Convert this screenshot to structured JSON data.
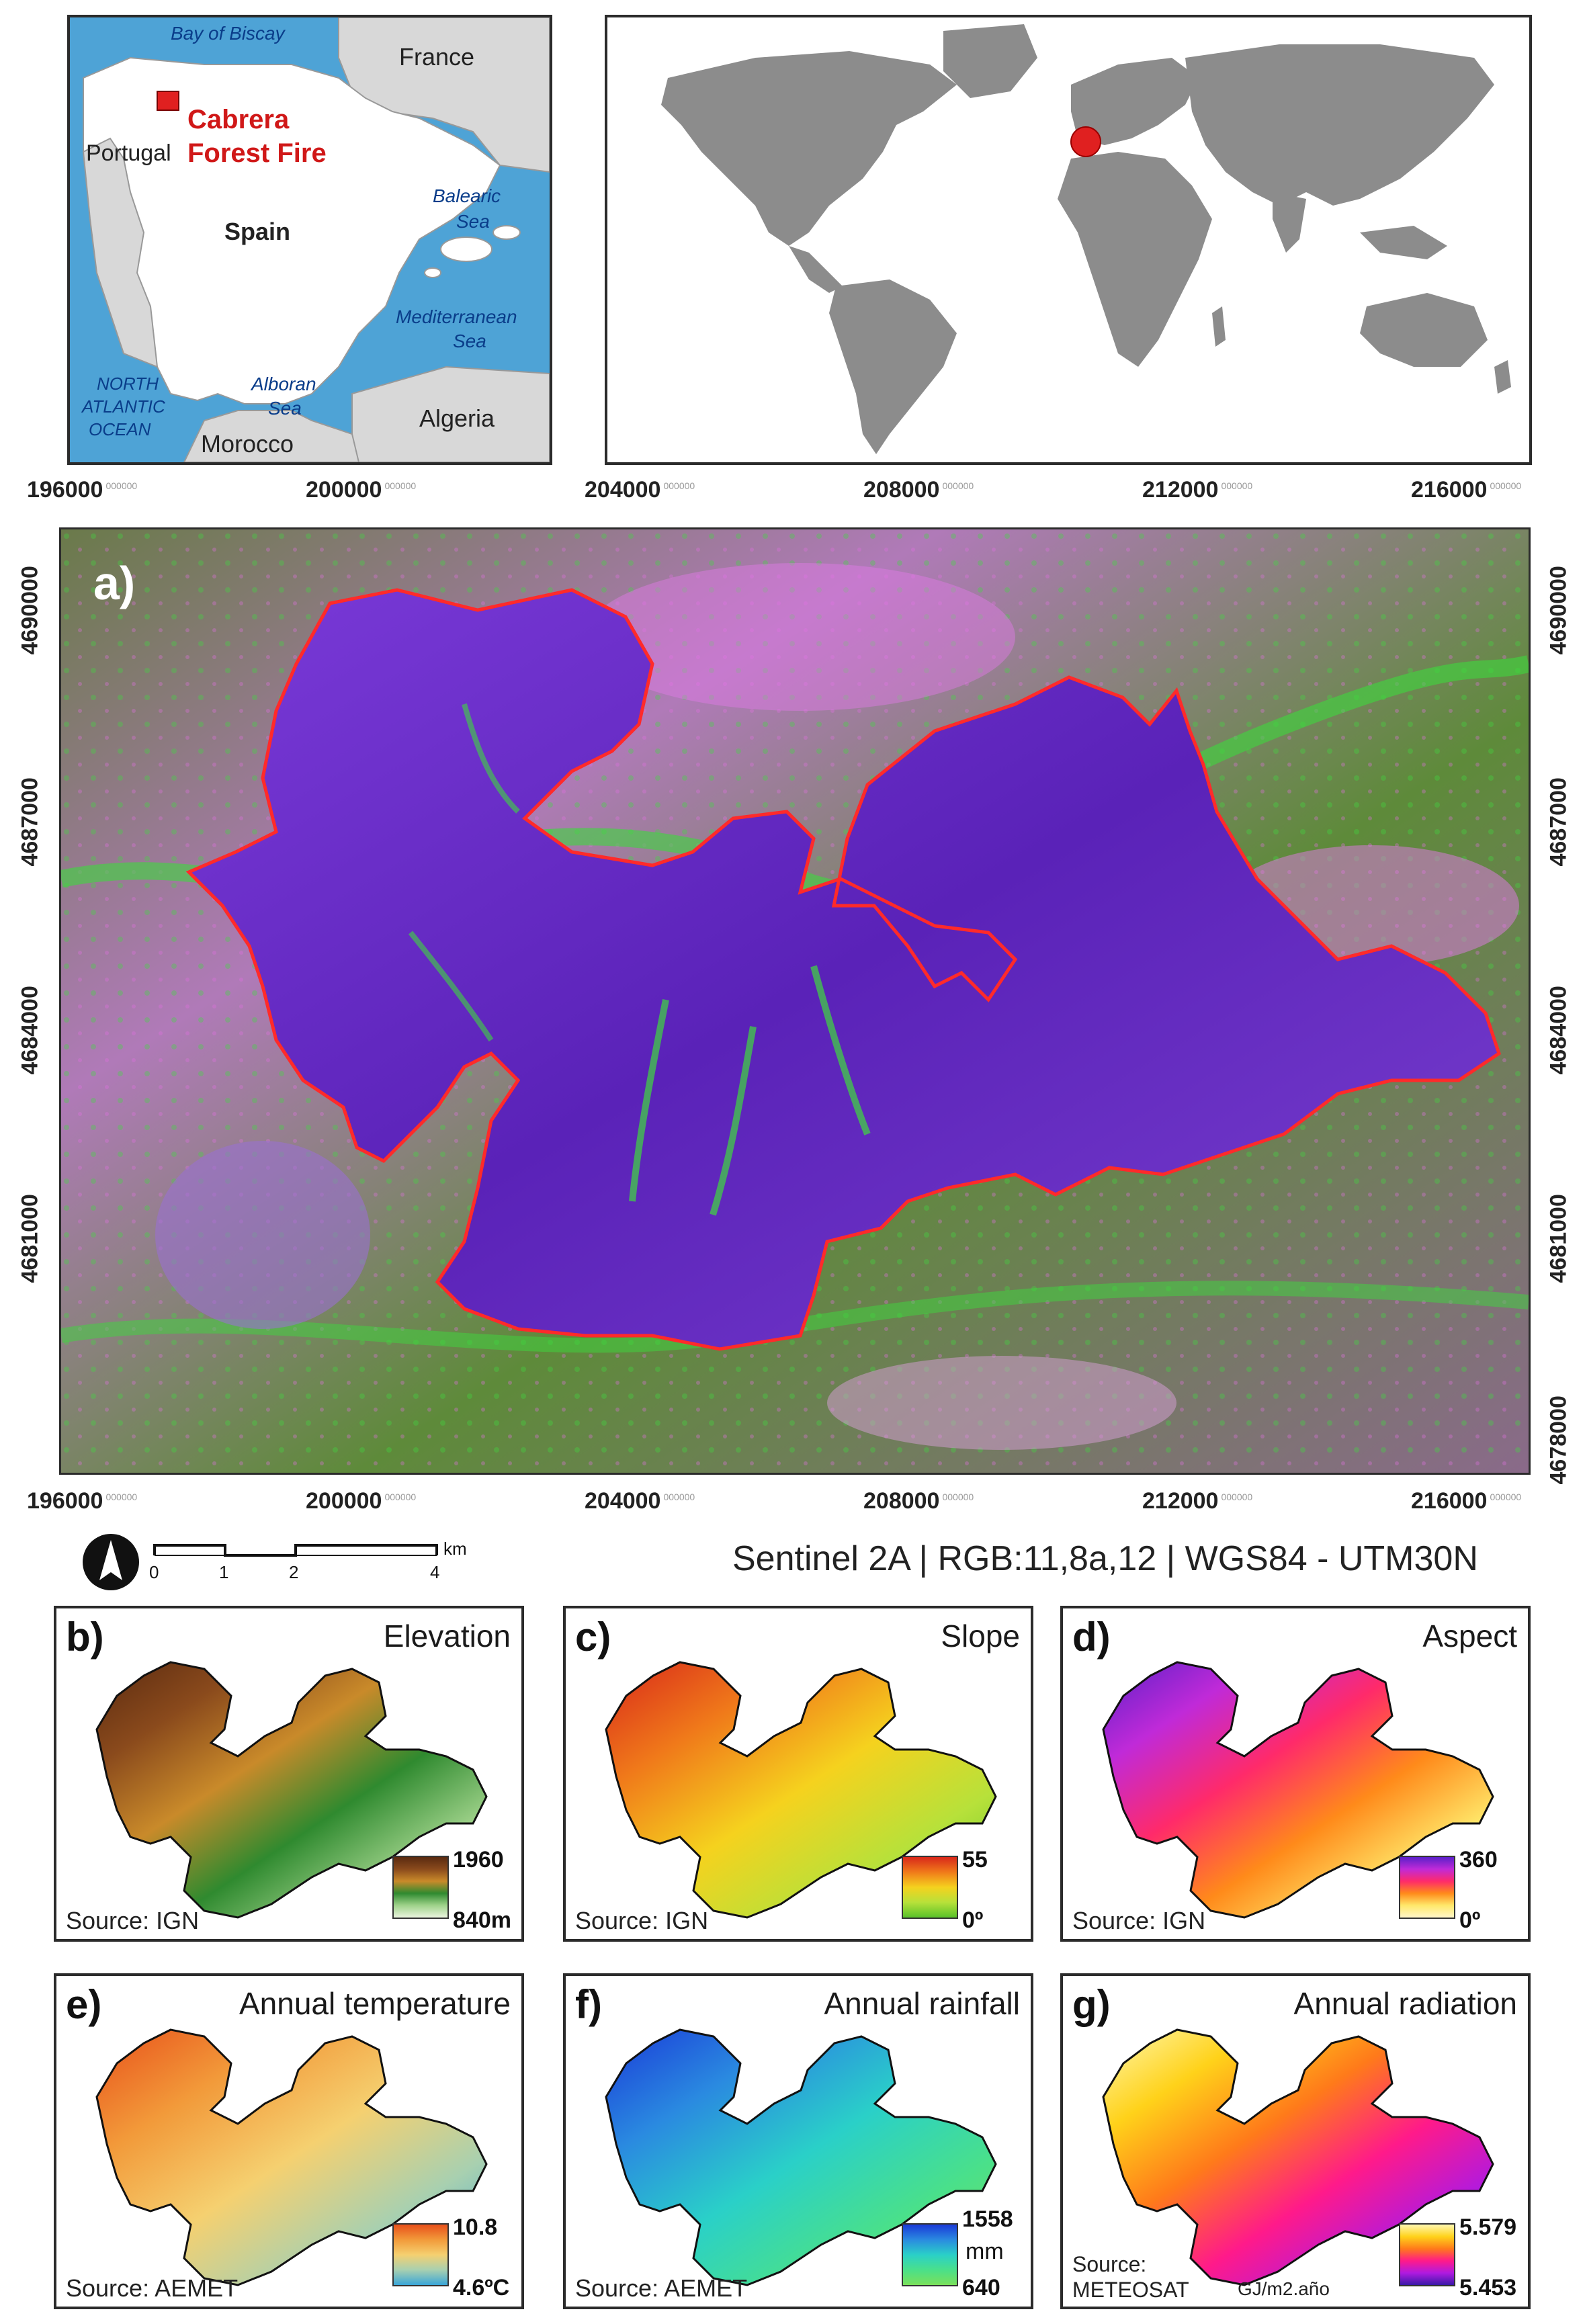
{
  "inset_spain": {
    "labels": {
      "bay": "Bay of Biscay",
      "france": "France",
      "portugal": "Portugal",
      "fire_line1": "Cabrera",
      "fire_line2": "Forest Fire",
      "spain": "Spain",
      "balearic1": "Balearic",
      "balearic2": "Sea",
      "med1": "Mediterranean",
      "med2": "Sea",
      "north1": "NORTH",
      "north2": "ATLANTIC",
      "north3": "OCEAN",
      "alboran1": "Alboran",
      "alboran2": "Sea",
      "algeria": "Algeria",
      "morocco": "Morocco"
    }
  },
  "main_map": {
    "panel_label": "a)",
    "x_ticks": [
      "196000",
      "200000",
      "204000",
      "208000",
      "212000",
      "216000"
    ],
    "x_tick_suffix": "000000",
    "y_ticks": [
      "4690000",
      "4687000",
      "4684000",
      "4681000",
      "4678000"
    ],
    "scale_bar": {
      "unit": "km",
      "ticks": [
        "0",
        "1",
        "2",
        "4"
      ]
    },
    "caption": "Sentinel 2A | RGB:11,8a,12 | WGS84 - UTM30N"
  },
  "panels": [
    {
      "id": "b",
      "label": "b)",
      "title": "Elevation",
      "source": "Source: IGN",
      "max": "1960",
      "min": "840m",
      "colors": [
        "#5a2a10",
        "#8a4a1c",
        "#c98a2a",
        "#2f8a2f",
        "#9fd28a",
        "#eaf5de"
      ]
    },
    {
      "id": "c",
      "label": "c)",
      "title": "Slope",
      "source": "Source: IGN",
      "max": "55",
      "min": "0º",
      "colors": [
        "#d8281a",
        "#f07a1a",
        "#f5d21e",
        "#b7e13a",
        "#59c22a"
      ]
    },
    {
      "id": "d",
      "label": "d)",
      "title": "Aspect",
      "source": "Source: IGN",
      "max": "360",
      "min": "0º",
      "colors": [
        "#5a20c8",
        "#c02ad8",
        "#ff2a6a",
        "#ff8a1a",
        "#ffe86a",
        "#fff6c8"
      ]
    },
    {
      "id": "e",
      "label": "e)",
      "title": "Annual temperature",
      "source": "Source: AEMET",
      "max": "10.8",
      "min": "4.6ºC",
      "colors": [
        "#e8501a",
        "#f29a3a",
        "#f5d070",
        "#a8d0b0",
        "#3aa6d8"
      ]
    },
    {
      "id": "f",
      "label": "f)",
      "title": "Annual rainfall",
      "source": "Source: AEMET",
      "max": "1558",
      "unit": "mm",
      "min": "640",
      "colors": [
        "#1a3ad8",
        "#2a8ae0",
        "#2ad0c8",
        "#4ae08a",
        "#7ae05a"
      ]
    },
    {
      "id": "g",
      "label": "g)",
      "title": "Annual radiation",
      "source_line1": "Source:",
      "source_line2": "METEOSAT",
      "unit": "GJ/m2.año",
      "max": "5.579",
      "min": "5.453",
      "colors": [
        "#fff8b0",
        "#ffd21a",
        "#ff7a1a",
        "#ff1a8a",
        "#b01ae0",
        "#3a1aa8"
      ]
    }
  ]
}
